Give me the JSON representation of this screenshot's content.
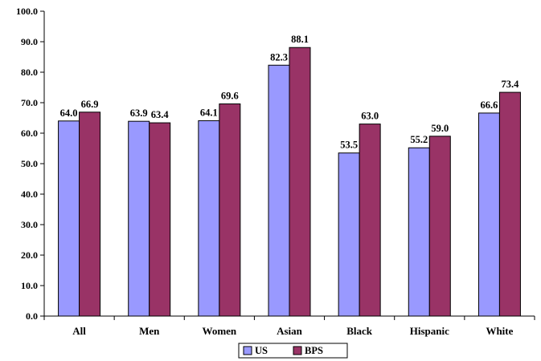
{
  "chart_data": {
    "type": "bar",
    "categories": [
      "All",
      "Men",
      "Women",
      "Asian",
      "Black",
      "Hispanic",
      "White"
    ],
    "series": [
      {
        "name": "US",
        "values": [
          64.0,
          63.9,
          64.1,
          82.3,
          53.5,
          55.2,
          66.6
        ],
        "color": "#9999ff"
      },
      {
        "name": "BPS",
        "values": [
          66.9,
          63.4,
          69.6,
          88.1,
          63.0,
          59.0,
          73.4
        ],
        "color": "#993366"
      }
    ],
    "ylim": [
      0,
      100
    ],
    "yticks": [
      "0.0",
      "10.0",
      "20.0",
      "30.0",
      "40.0",
      "50.0",
      "60.0",
      "70.0",
      "80.0",
      "90.0",
      "100.0"
    ],
    "grid": false,
    "legend_position": "bottom",
    "data_labels": true
  }
}
